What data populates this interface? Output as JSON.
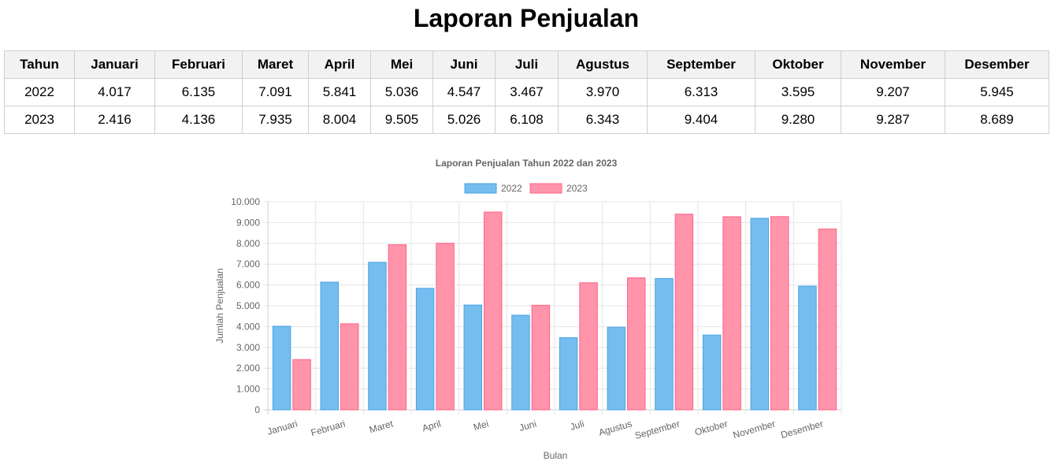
{
  "page": {
    "title": "Laporan Penjualan"
  },
  "table": {
    "headers": [
      "Tahun",
      "Januari",
      "Februari",
      "Maret",
      "April",
      "Mei",
      "Juni",
      "Juli",
      "Agustus",
      "September",
      "Oktober",
      "November",
      "Desember"
    ],
    "rows": [
      [
        "2022",
        "4.017",
        "6.135",
        "7.091",
        "5.841",
        "5.036",
        "4.547",
        "3.467",
        "3.970",
        "6.313",
        "3.595",
        "9.207",
        "5.945"
      ],
      [
        "2023",
        "2.416",
        "4.136",
        "7.935",
        "8.004",
        "9.505",
        "5.026",
        "6.108",
        "6.343",
        "9.404",
        "9.280",
        "9.287",
        "8.689"
      ]
    ]
  },
  "colors": {
    "series_2022_fill": "#74bdee",
    "series_2022_stroke": "#4aa3e6",
    "series_2023_fill": "#ff94ab",
    "series_2023_stroke": "#ff6384",
    "grid": "#e5e5e5",
    "text": "#666666"
  },
  "chart_data": {
    "type": "bar",
    "title": "Laporan Penjualan Tahun 2022 dan 2023",
    "xlabel": "Bulan",
    "ylabel": "Jumlah Penjualan",
    "categories": [
      "Januari",
      "Februari",
      "Maret",
      "April",
      "Mei",
      "Juni",
      "Juli",
      "Agustus",
      "September",
      "Oktober",
      "November",
      "Desember"
    ],
    "series": [
      {
        "name": "2022",
        "values": [
          4017,
          6135,
          7091,
          5841,
          5036,
          4547,
          3467,
          3970,
          6313,
          3595,
          9207,
          5945
        ]
      },
      {
        "name": "2023",
        "values": [
          2416,
          4136,
          7935,
          8004,
          9505,
          5026,
          6108,
          6343,
          9404,
          9280,
          9287,
          8689
        ]
      }
    ],
    "ylim": [
      0,
      10000
    ],
    "yticks": [
      "0",
      "1.000",
      "2.000",
      "3.000",
      "4.000",
      "5.000",
      "6.000",
      "7.000",
      "8.000",
      "9.000",
      "10.000"
    ],
    "grid": true,
    "legend_position": "top"
  }
}
